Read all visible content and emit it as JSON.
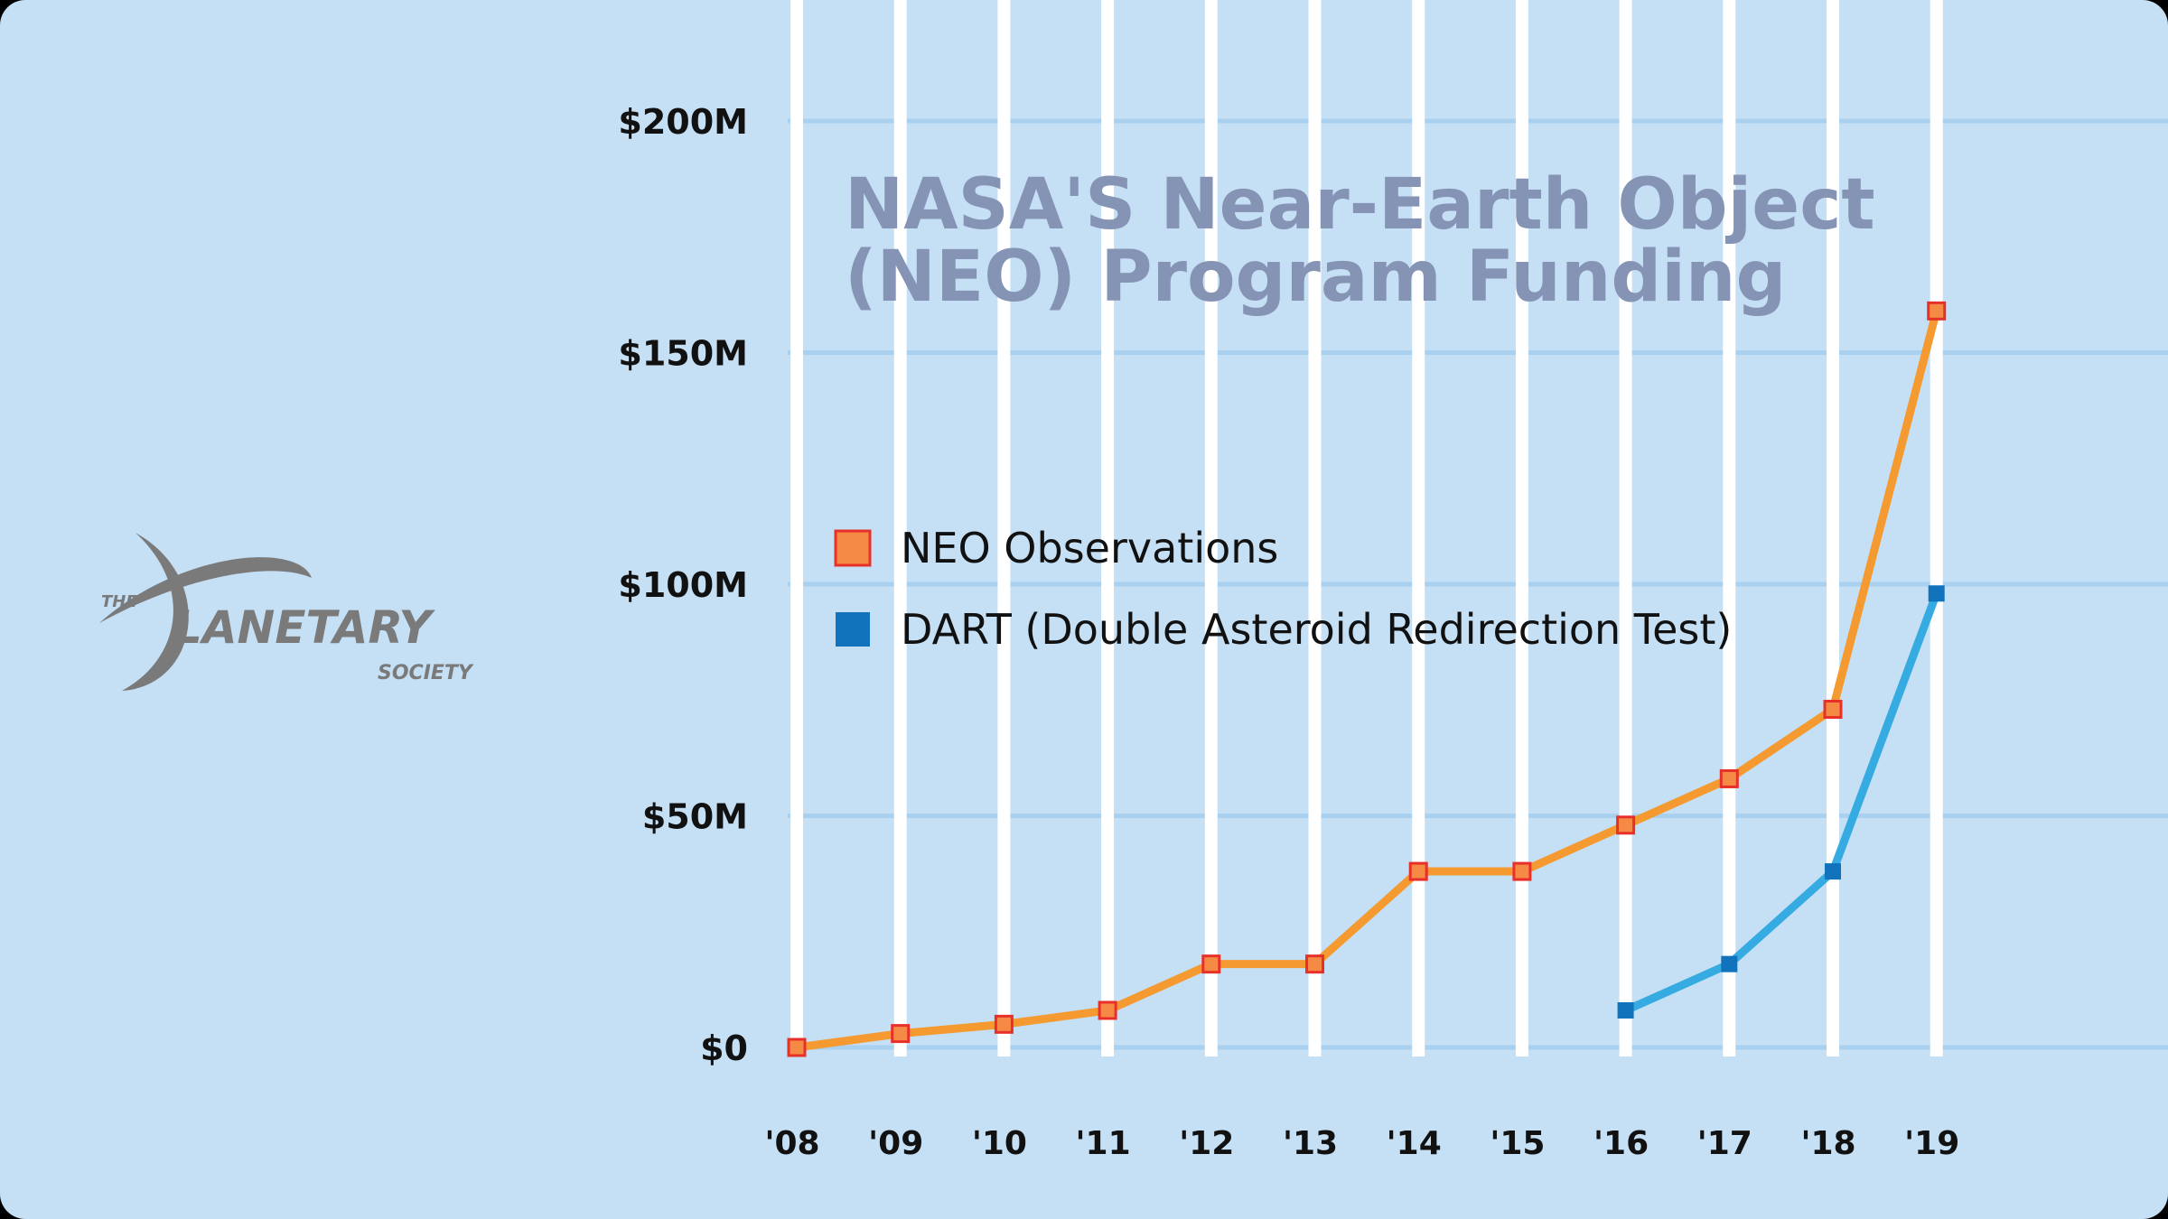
{
  "colors": {
    "background": "#c5dff4",
    "grid_vertical": "#ffffff",
    "grid_horizontal": "#a9d0ef",
    "title": "#8593b5",
    "neo_line": "#f59a30",
    "neo_marker_fill": "#f58a45",
    "neo_marker_stroke": "#e8302a",
    "dart_line": "#36abe2",
    "dart_marker": "#1273bd",
    "logo": "#7a7a7a"
  },
  "logo": {
    "the": "THE",
    "planetary": "LANETARY",
    "society": "SOCIETY",
    "icon": "planetary-society-p-arc-logo"
  },
  "chart_data": {
    "type": "line",
    "title_lines": [
      "NASA'S Near-Earth Object",
      "(NEO) Program Funding"
    ],
    "xlabel": "",
    "ylabel": "",
    "categories": [
      "'08",
      "'09",
      "'10",
      "'11",
      "'12",
      "'13",
      "'14",
      "'15",
      "'16",
      "'17",
      "'18",
      "'19"
    ],
    "ylim": [
      0,
      200
    ],
    "yticks": [
      0,
      50,
      100,
      150,
      200
    ],
    "ytick_labels": [
      "$0",
      "$50M",
      "$100M",
      "$150M",
      "$200M"
    ],
    "grid": true,
    "legend_position": "center-left",
    "series": [
      {
        "name": "NEO Observations",
        "values": [
          0,
          3,
          5,
          8,
          18,
          18,
          38,
          38,
          48,
          58,
          73,
          159
        ]
      },
      {
        "name": "DART (Double Asteroid Redirection Test)",
        "values": [
          null,
          null,
          null,
          null,
          null,
          null,
          null,
          null,
          8,
          18,
          38,
          98
        ]
      }
    ]
  }
}
